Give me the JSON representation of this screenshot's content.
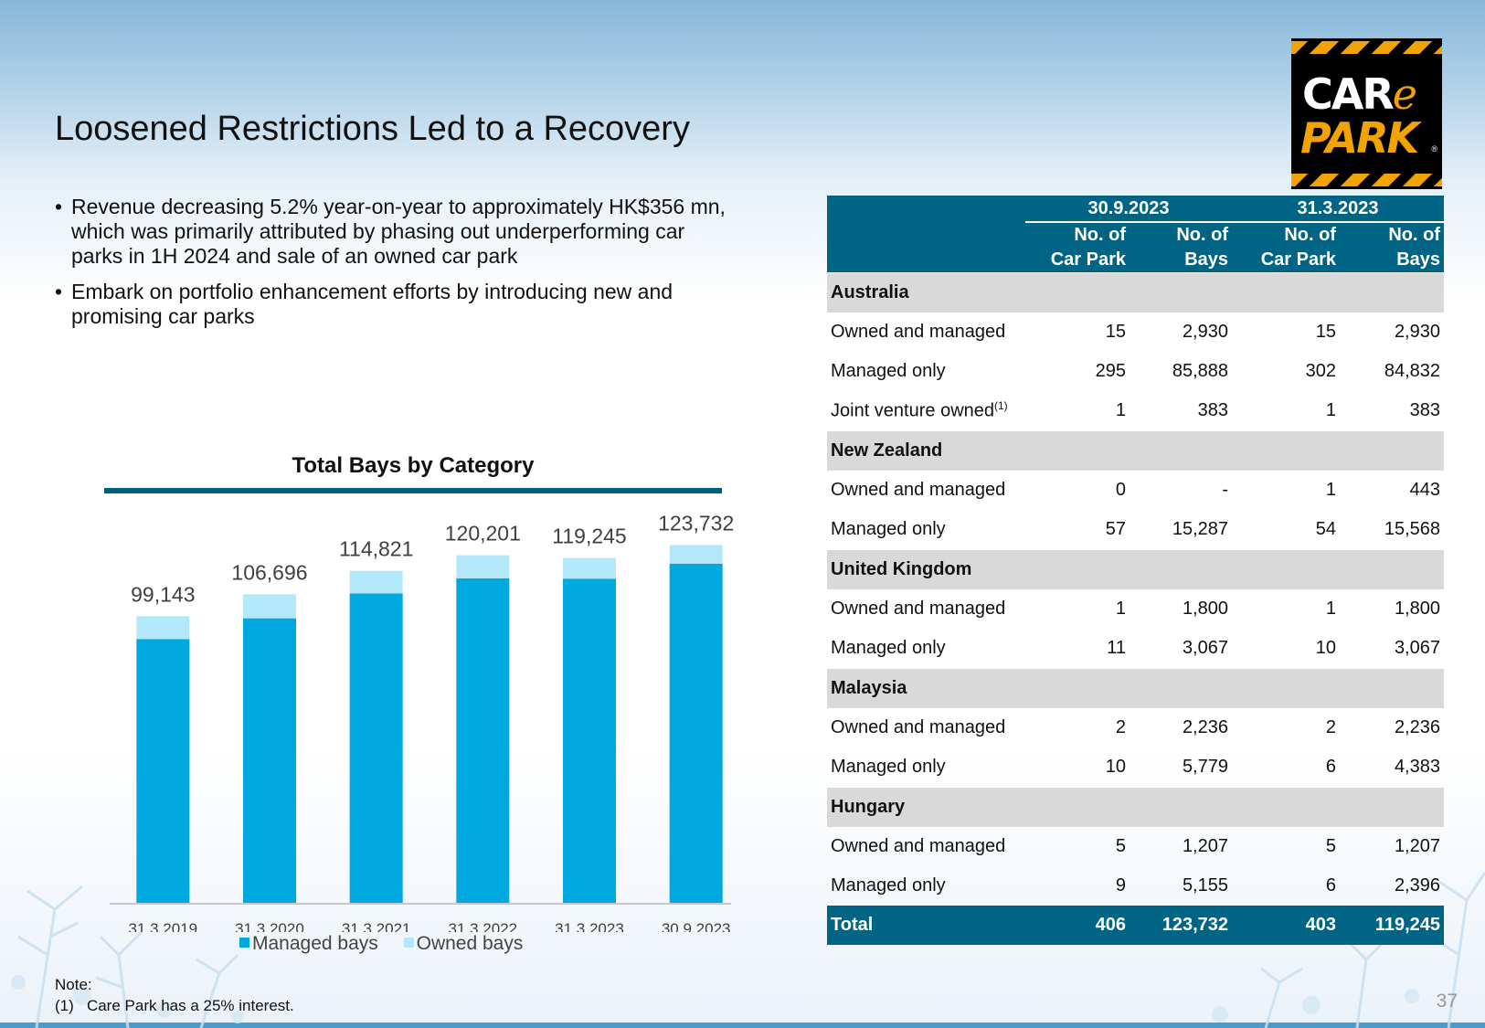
{
  "title": "Loosened Restrictions Led to a Recovery",
  "logo": {
    "line1_a": "CAR",
    "line1_b": "e",
    "line2": "PARK",
    "reg": "®"
  },
  "bullets": [
    "Revenue decreasing 5.2% year-on-year to approximately HK$356 mn, which was primarily attributed by phasing out underperforming car parks in 1H 2024 and sale of an owned car park",
    "Embark on portfolio enhancement efforts by introducing new and promising car parks"
  ],
  "chart_data": {
    "type": "bar",
    "stacked": true,
    "title": "Total Bays by Category",
    "categories": [
      "31.3.2019",
      "31.3.2020",
      "31.3.2021",
      "31.3.2022",
      "31.3.2023",
      "30.9.2023"
    ],
    "series": [
      {
        "name": "Managed bays",
        "color": "#00a8e0",
        "values": [
          91200,
          98400,
          107000,
          112200,
          112100,
          117300
        ]
      },
      {
        "name": "Owned bays",
        "color": "#b3e8fa",
        "values": [
          7943,
          8296,
          7821,
          8001,
          7145,
          6432
        ]
      }
    ],
    "totals": [
      99143,
      106696,
      114821,
      120201,
      119245,
      123732
    ],
    "total_labels": [
      "99,143",
      "106,696",
      "114,821",
      "120,201",
      "119,245",
      "123,732"
    ],
    "ylim": [
      0,
      140000
    ],
    "grid": false,
    "legend": "bottom",
    "xlabel": "",
    "ylabel": ""
  },
  "legend": {
    "managed": "Managed bays",
    "owned": "Owned bays"
  },
  "table": {
    "period1": "30.9.2023",
    "period2": "31.3.2023",
    "col_car_park_1": "No. of",
    "col_car_park_2": "Car Park",
    "col_bays_1": "No. of",
    "col_bays_2": "Bays",
    "sections": [
      {
        "name": "Australia",
        "rows": [
          {
            "label": "Owned and managed",
            "v": [
              "15",
              "2,930",
              "15",
              "2,930"
            ]
          },
          {
            "label": "Managed only",
            "v": [
              "295",
              "85,888",
              "302",
              "84,832"
            ]
          },
          {
            "label": "Joint venture owned",
            "sup": "(1)",
            "v": [
              "1",
              "383",
              "1",
              "383"
            ]
          }
        ]
      },
      {
        "name": "New Zealand",
        "rows": [
          {
            "label": "Owned and managed",
            "v": [
              "0",
              "-",
              "1",
              "443"
            ]
          },
          {
            "label": "Managed only",
            "v": [
              "57",
              "15,287",
              "54",
              "15,568"
            ]
          }
        ]
      },
      {
        "name": "United Kingdom",
        "rows": [
          {
            "label": "Owned and managed",
            "v": [
              "1",
              "1,800",
              "1",
              "1,800"
            ]
          },
          {
            "label": "Managed only",
            "v": [
              "11",
              "3,067",
              "10",
              "3,067"
            ]
          }
        ]
      },
      {
        "name": "Malaysia",
        "rows": [
          {
            "label": "Owned and managed",
            "v": [
              "2",
              "2,236",
              "2",
              "2,236"
            ]
          },
          {
            "label": "Managed only",
            "v": [
              "10",
              "5,779",
              "6",
              "4,383"
            ]
          }
        ]
      },
      {
        "name": "Hungary",
        "rows": [
          {
            "label": "Owned and managed",
            "v": [
              "5",
              "1,207",
              "5",
              "1,207"
            ]
          },
          {
            "label": "Managed only",
            "v": [
              "9",
              "5,155",
              "6",
              "2,396"
            ]
          }
        ]
      }
    ],
    "total": {
      "label": "Total",
      "v": [
        "406",
        "123,732",
        "403",
        "119,245"
      ]
    }
  },
  "note": {
    "heading": "Note:",
    "marker": "(1)",
    "text": "Care Park has a 25% interest."
  },
  "page_number": "37"
}
